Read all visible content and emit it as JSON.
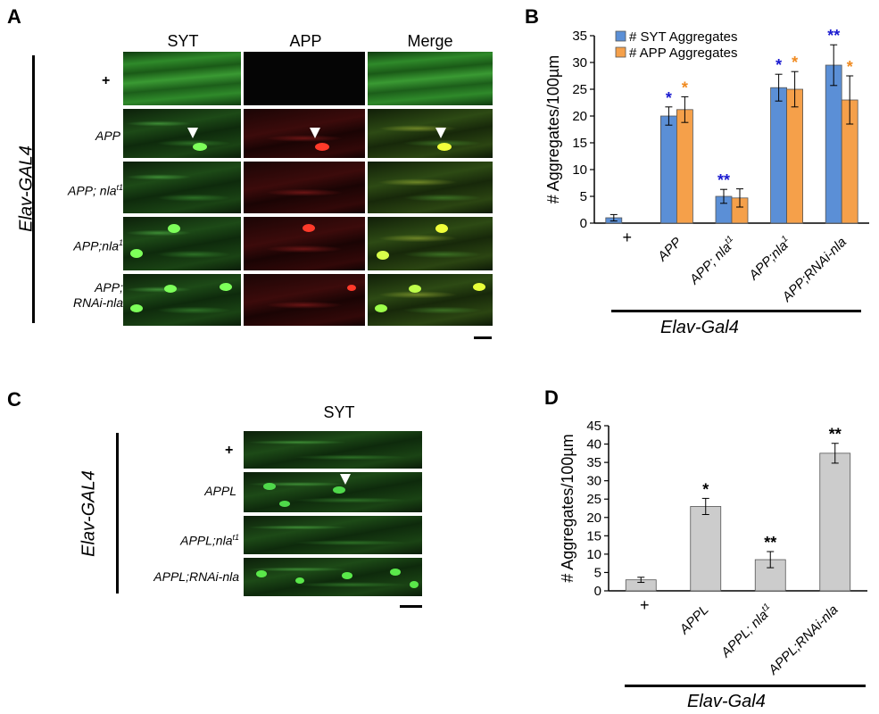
{
  "panels": {
    "A": {
      "letter": "A",
      "columns": [
        "SYT",
        "APP",
        "Merge"
      ],
      "rows": [
        "+",
        "APP",
        "APP; nla",
        "APP;nla",
        "APP;",
        "RNAi-nla"
      ],
      "row_sup": [
        "",
        "",
        "t1",
        "1",
        "",
        ""
      ],
      "driver": "Elav-GAL4"
    },
    "B": {
      "letter": "B",
      "driver": "Elav-Gal4"
    },
    "C": {
      "letter": "C",
      "columns": [
        "SYT"
      ],
      "rows": [
        "+",
        "APPL",
        "APPL;nla",
        "APPL;RNAi-nla"
      ],
      "row_sup": [
        "",
        "",
        "t1",
        ""
      ],
      "driver": "Elav-GAL4"
    },
    "D": {
      "letter": "D",
      "driver": "Elav-Gal4"
    }
  },
  "chart_data": [
    {
      "type": "bar",
      "ylabel": "# Aggregates/100µm",
      "ylim": [
        0,
        35
      ],
      "yticks": [
        0,
        5,
        10,
        15,
        20,
        25,
        30,
        35
      ],
      "categories": [
        "+",
        "APP",
        "APP; nla",
        "APP;nla",
        "APP;RNAi-nla"
      ],
      "category_sup": [
        "",
        "",
        "t1",
        "1",
        ""
      ],
      "legend": {
        "placement": "top-left"
      },
      "series": [
        {
          "name": "# SYT Aggregates",
          "color": "#5b8fd6",
          "values": [
            1.0,
            20.0,
            5.0,
            25.3,
            29.5
          ],
          "errors": [
            0.6,
            1.7,
            1.3,
            2.5,
            3.8
          ],
          "significance": [
            "",
            "*",
            "**",
            "*",
            "**"
          ],
          "sig_color": "#1a1ad0"
        },
        {
          "name": "# APP Aggregates",
          "color": "#f5a04a",
          "values": [
            0.0,
            21.2,
            4.7,
            25.0,
            23.0
          ],
          "errors": [
            0.0,
            2.4,
            1.7,
            3.3,
            4.5
          ],
          "significance": [
            "",
            "*",
            "",
            "*",
            "*"
          ],
          "sig_color": "#f08a20"
        }
      ]
    },
    {
      "type": "bar",
      "ylabel": "# Aggregates/100µm",
      "ylim": [
        0,
        45
      ],
      "yticks": [
        0,
        5,
        10,
        15,
        20,
        25,
        30,
        35,
        40,
        45
      ],
      "categories": [
        "+",
        "APPL",
        "APPL; nla",
        "APPL;RNAi-nla"
      ],
      "category_sup": [
        "",
        "",
        "t1",
        ""
      ],
      "series": [
        {
          "color": "#cccccc",
          "values": [
            3.0,
            23.0,
            8.5,
            37.5
          ],
          "errors": [
            0.7,
            2.2,
            2.2,
            2.7
          ],
          "significance": [
            "",
            "*",
            "**",
            "**"
          ],
          "sig_color": "#000000"
        }
      ]
    }
  ]
}
